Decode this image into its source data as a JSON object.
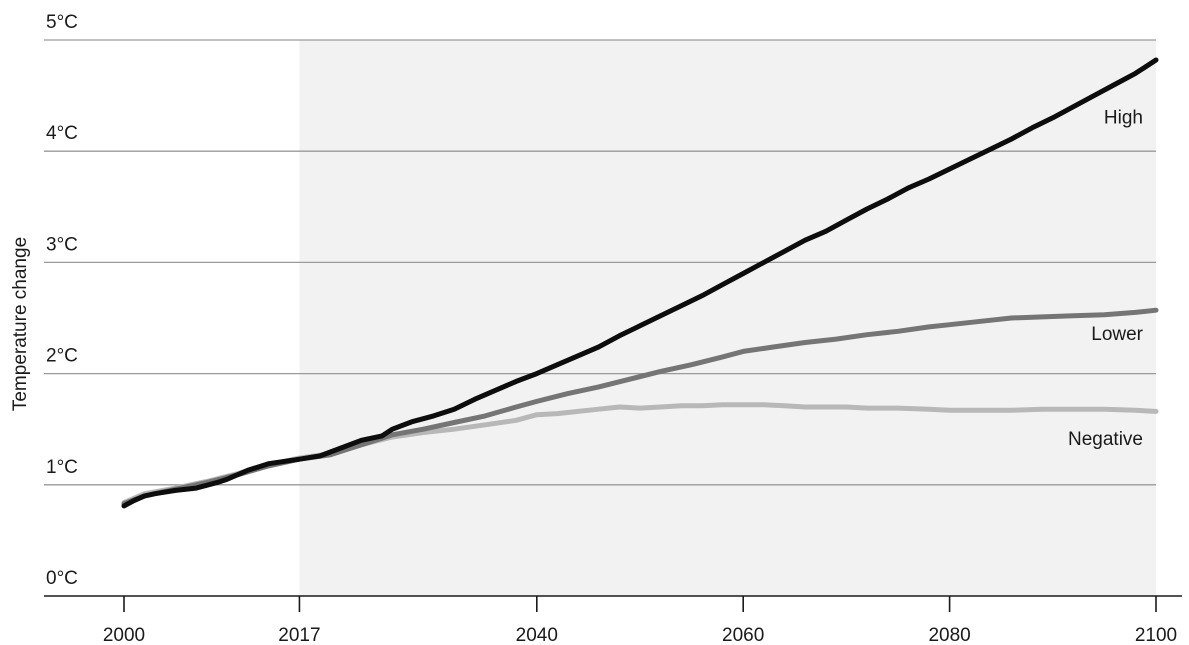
{
  "chart_data": {
    "type": "line",
    "title": "",
    "ylabel": "Temperature change",
    "xlabel": "",
    "x_ticks": [
      2000,
      2017,
      2040,
      2060,
      2080,
      2100
    ],
    "x_tick_labels": [
      "2000",
      "2017",
      "2040",
      "2060",
      "2080",
      "2100"
    ],
    "y_ticks": [
      0,
      1,
      2,
      3,
      4,
      5
    ],
    "y_tick_labels": [
      "0°C",
      "1°C",
      "2°C",
      "3°C",
      "4°C",
      "5°C"
    ],
    "xlim": [
      2000,
      2100
    ],
    "ylim": [
      0,
      5
    ],
    "grid": "horizontal",
    "shaded_region": [
      2017,
      2100
    ],
    "shade_color": "#f2f2f2",
    "series": [
      {
        "name": "High",
        "color": "#0d0d0d",
        "x": [
          2000,
          2001,
          2002,
          2003,
          2005,
          2007,
          2009,
          2010,
          2012,
          2014,
          2017,
          2019,
          2021,
          2023,
          2025,
          2026,
          2028,
          2030,
          2032,
          2034,
          2036,
          2038,
          2040,
          2042,
          2044,
          2046,
          2048,
          2050,
          2052,
          2054,
          2056,
          2058,
          2060,
          2062,
          2064,
          2066,
          2068,
          2070,
          2072,
          2074,
          2076,
          2078,
          2080,
          2082,
          2084,
          2086,
          2088,
          2090,
          2092,
          2094,
          2096,
          2098,
          2100
        ],
        "y": [
          0.81,
          0.86,
          0.9,
          0.92,
          0.95,
          0.97,
          1.02,
          1.05,
          1.13,
          1.19,
          1.23,
          1.26,
          1.33,
          1.4,
          1.44,
          1.5,
          1.57,
          1.62,
          1.68,
          1.77,
          1.85,
          1.93,
          2.0,
          2.08,
          2.16,
          2.24,
          2.34,
          2.43,
          2.52,
          2.61,
          2.7,
          2.8,
          2.9,
          3.0,
          3.1,
          3.2,
          3.28,
          3.38,
          3.48,
          3.57,
          3.67,
          3.75,
          3.84,
          3.93,
          4.02,
          4.11,
          4.21,
          4.3,
          4.4,
          4.5,
          4.6,
          4.7,
          4.82
        ]
      },
      {
        "name": "Lower",
        "color": "#757575",
        "x": [
          2000,
          2002,
          2005,
          2008,
          2011,
          2014,
          2017,
          2020,
          2023,
          2026,
          2029,
          2032,
          2035,
          2038,
          2040,
          2043,
          2046,
          2049,
          2052,
          2055,
          2058,
          2060,
          2063,
          2066,
          2069,
          2072,
          2075,
          2078,
          2080,
          2083,
          2086,
          2089,
          2092,
          2095,
          2098,
          2100
        ],
        "y": [
          0.83,
          0.9,
          0.96,
          1.02,
          1.09,
          1.17,
          1.23,
          1.27,
          1.36,
          1.45,
          1.5,
          1.56,
          1.62,
          1.7,
          1.75,
          1.82,
          1.88,
          1.95,
          2.02,
          2.08,
          2.15,
          2.2,
          2.24,
          2.28,
          2.31,
          2.35,
          2.38,
          2.42,
          2.44,
          2.47,
          2.5,
          2.51,
          2.52,
          2.53,
          2.55,
          2.57
        ]
      },
      {
        "name": "Negative",
        "color": "#b8b8b8",
        "x": [
          2000,
          2002,
          2005,
          2008,
          2011,
          2014,
          2017,
          2020,
          2023,
          2026,
          2029,
          2032,
          2035,
          2038,
          2040,
          2042,
          2044,
          2046,
          2048,
          2050,
          2052,
          2054,
          2056,
          2058,
          2060,
          2062,
          2064,
          2066,
          2068,
          2070,
          2072,
          2075,
          2078,
          2080,
          2083,
          2086,
          2089,
          2092,
          2095,
          2098,
          2100
        ],
        "y": [
          0.84,
          0.92,
          0.97,
          1.03,
          1.1,
          1.18,
          1.24,
          1.28,
          1.36,
          1.43,
          1.47,
          1.5,
          1.54,
          1.58,
          1.63,
          1.64,
          1.66,
          1.68,
          1.7,
          1.69,
          1.7,
          1.71,
          1.71,
          1.72,
          1.72,
          1.72,
          1.71,
          1.7,
          1.7,
          1.7,
          1.69,
          1.69,
          1.68,
          1.67,
          1.67,
          1.67,
          1.68,
          1.68,
          1.68,
          1.67,
          1.66
        ]
      }
    ]
  }
}
